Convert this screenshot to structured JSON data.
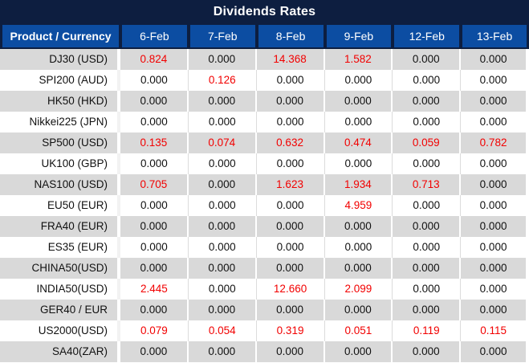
{
  "title": "Dividends Rates",
  "colors": {
    "title_bar_navy": "#0d1e40",
    "header_blue": "#0c4da2",
    "row_gray": "#d9d9d9",
    "row_white": "#ffffff",
    "value_black": "#111111",
    "value_red": "#f20000"
  },
  "table": {
    "product_header": "Product / Currency",
    "date_headers": [
      "6-Feb",
      "7-Feb",
      "8-Feb",
      "9-Feb",
      "12-Feb",
      "13-Feb"
    ],
    "rows": [
      {
        "product": "DJ30 (USD)",
        "values": [
          "0.824",
          "0.000",
          "14.368",
          "1.582",
          "0.000",
          "0.000"
        ],
        "highlight": [
          true,
          false,
          true,
          true,
          false,
          false
        ]
      },
      {
        "product": "SPI200 (AUD)",
        "values": [
          "0.000",
          "0.126",
          "0.000",
          "0.000",
          "0.000",
          "0.000"
        ],
        "highlight": [
          false,
          true,
          false,
          false,
          false,
          false
        ]
      },
      {
        "product": "HK50 (HKD)",
        "values": [
          "0.000",
          "0.000",
          "0.000",
          "0.000",
          "0.000",
          "0.000"
        ],
        "highlight": [
          false,
          false,
          false,
          false,
          false,
          false
        ]
      },
      {
        "product": "Nikkei225 (JPN)",
        "values": [
          "0.000",
          "0.000",
          "0.000",
          "0.000",
          "0.000",
          "0.000"
        ],
        "highlight": [
          false,
          false,
          false,
          false,
          false,
          false
        ]
      },
      {
        "product": "SP500 (USD)",
        "values": [
          "0.135",
          "0.074",
          "0.632",
          "0.474",
          "0.059",
          "0.782"
        ],
        "highlight": [
          true,
          true,
          true,
          true,
          true,
          true
        ]
      },
      {
        "product": "UK100 (GBP)",
        "values": [
          "0.000",
          "0.000",
          "0.000",
          "0.000",
          "0.000",
          "0.000"
        ],
        "highlight": [
          false,
          false,
          false,
          false,
          false,
          false
        ]
      },
      {
        "product": "NAS100 (USD)",
        "values": [
          "0.705",
          "0.000",
          "1.623",
          "1.934",
          "0.713",
          "0.000"
        ],
        "highlight": [
          true,
          false,
          true,
          true,
          true,
          false
        ]
      },
      {
        "product": "EU50 (EUR)",
        "values": [
          "0.000",
          "0.000",
          "0.000",
          "4.959",
          "0.000",
          "0.000"
        ],
        "highlight": [
          false,
          false,
          false,
          true,
          false,
          false
        ]
      },
      {
        "product": "FRA40 (EUR)",
        "values": [
          "0.000",
          "0.000",
          "0.000",
          "0.000",
          "0.000",
          "0.000"
        ],
        "highlight": [
          false,
          false,
          false,
          false,
          false,
          false
        ]
      },
      {
        "product": "ES35 (EUR)",
        "values": [
          "0.000",
          "0.000",
          "0.000",
          "0.000",
          "0.000",
          "0.000"
        ],
        "highlight": [
          false,
          false,
          false,
          false,
          false,
          false
        ]
      },
      {
        "product": "CHINA50(USD)",
        "values": [
          "0.000",
          "0.000",
          "0.000",
          "0.000",
          "0.000",
          "0.000"
        ],
        "highlight": [
          false,
          false,
          false,
          false,
          false,
          false
        ]
      },
      {
        "product": "INDIA50(USD)",
        "values": [
          "2.445",
          "0.000",
          "12.660",
          "2.099",
          "0.000",
          "0.000"
        ],
        "highlight": [
          true,
          false,
          true,
          true,
          false,
          false
        ]
      },
      {
        "product": "GER40 / EUR",
        "values": [
          "0.000",
          "0.000",
          "0.000",
          "0.000",
          "0.000",
          "0.000"
        ],
        "highlight": [
          false,
          false,
          false,
          false,
          false,
          false
        ]
      },
      {
        "product": "US2000(USD)",
        "values": [
          "0.079",
          "0.054",
          "0.319",
          "0.051",
          "0.119",
          "0.115"
        ],
        "highlight": [
          true,
          true,
          true,
          true,
          true,
          true
        ]
      },
      {
        "product": "SA40(ZAR)",
        "values": [
          "0.000",
          "0.000",
          "0.000",
          "0.000",
          "0.000",
          "0.000"
        ],
        "highlight": [
          false,
          false,
          false,
          false,
          false,
          false
        ]
      }
    ]
  }
}
